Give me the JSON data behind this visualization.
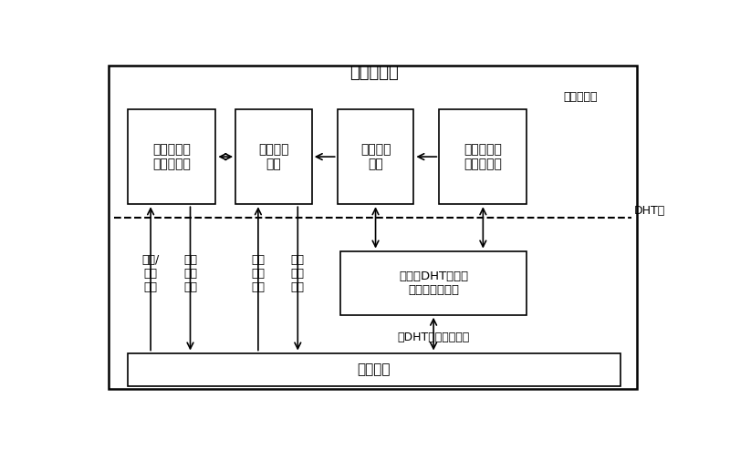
{
  "title": "寻址服务器",
  "bg_color": "#ffffff",
  "service_layer_label": "服务处理层",
  "dht_layer_label": "DHT层",
  "bottom_network_label": "底层网络",
  "dht_packet_label": "与DHT相关的数据包",
  "box1_label": "映射记录信\n息存储模块",
  "box2_label": "路由查找\n模块",
  "box3_label": "信息维护\n模块",
  "box4_label": "节点加入退\n出处理模块",
  "dht_box_label": "叠加式DHT结构的\n建立与维护模块",
  "col1_label": "注册/\n更新\n请求",
  "col2_label": "处理\n结果\n回复",
  "col3_label": "查找\n服务\n请求",
  "col4_label": "查找\n结果\n回复"
}
